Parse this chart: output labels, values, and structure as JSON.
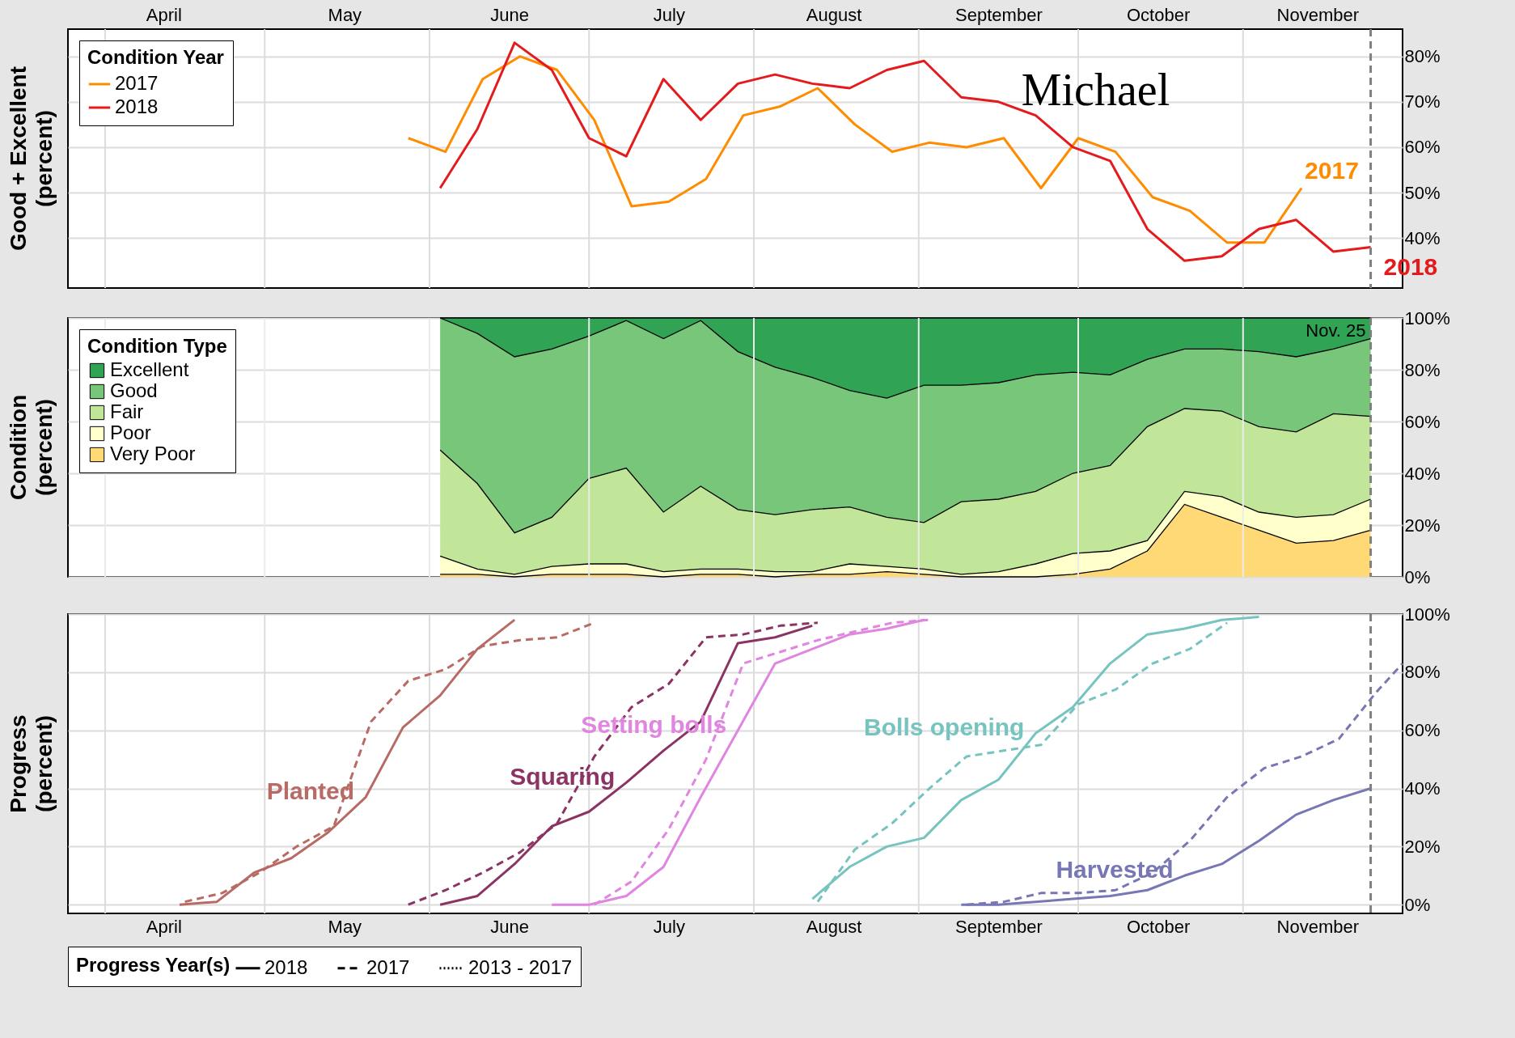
{
  "chart_data": [
    {
      "type": "line",
      "ylabel": "Good + Excellent\n(percent)",
      "legend_title": "Condition Year",
      "legend": "top left",
      "grid": true,
      "xlim": [
        "--03-25",
        "--12-01"
      ],
      "xticks": [
        {
          "value": "--04-01",
          "label": null
        },
        {
          "value": "--05-01",
          "label": null
        },
        {
          "value": "--06-01",
          "label": null
        },
        {
          "value": "--07-01",
          "label": null
        },
        {
          "value": "--08-01",
          "label": null
        },
        {
          "value": "--09-01",
          "label": null
        },
        {
          "value": "--10-01",
          "label": null
        },
        {
          "value": "--11-01",
          "label": null
        },
        {
          "value": "--04-12",
          "label": "April"
        },
        {
          "value": "--05-16",
          "label": "May"
        },
        {
          "value": "--06-16",
          "label": "June"
        },
        {
          "value": "--07-16",
          "label": "July"
        },
        {
          "value": "--08-16",
          "label": "August"
        },
        {
          "value": "--09-16",
          "label": "September"
        },
        {
          "value": "--10-16",
          "label": "October"
        },
        {
          "value": "--11-15",
          "label": "November"
        }
      ],
      "ylim": [
        29,
        86
      ],
      "yticks": [
        {
          "value": 40,
          "label": "40%"
        },
        {
          "value": 50,
          "label": "50%"
        },
        {
          "value": 60,
          "label": "60%"
        },
        {
          "value": 70,
          "label": "70%"
        },
        {
          "value": 80,
          "label": "80%"
        }
      ],
      "series": [
        {
          "name": "2017",
          "color": "#ff8c00",
          "x": [
            "--05-28",
            "--06-04",
            "--06-11",
            "--06-18",
            "--06-25",
            "--07-02",
            "--07-09",
            "--07-16",
            "--07-23",
            "--07-30",
            "--08-06",
            "--08-13",
            "--08-20",
            "--08-27",
            "--09-03",
            "--09-10",
            "--09-17",
            "--09-24",
            "--10-01",
            "--10-08",
            "--10-15",
            "--10-22",
            "--10-29",
            "--11-05",
            "--11-12"
          ],
          "values": [
            62,
            59,
            75,
            80,
            77,
            66,
            47,
            48,
            53,
            67,
            69,
            73,
            65,
            59,
            61,
            60,
            62,
            51,
            62,
            59,
            49,
            46,
            39,
            39,
            51
          ]
        },
        {
          "name": "2018",
          "color": "#e41a1c",
          "x": [
            "--06-03",
            "--06-10",
            "--06-17",
            "--06-24",
            "--07-01",
            "--07-08",
            "--07-15",
            "--07-22",
            "--07-29",
            "--08-05",
            "--08-12",
            "--08-19",
            "--08-26",
            "--09-02",
            "--09-09",
            "--09-16",
            "--09-23",
            "--09-30",
            "--10-07",
            "--10-14",
            "--10-21",
            "--10-28",
            "--11-04",
            "--11-11",
            "--11-18",
            "--11-25"
          ],
          "values": [
            51,
            64,
            83,
            77,
            62,
            58,
            75,
            66,
            74,
            76,
            74,
            73,
            77,
            79,
            71,
            70,
            67,
            60,
            57,
            42,
            35,
            36,
            42,
            44,
            37,
            38
          ]
        }
      ],
      "annotations": [
        "Michael"
      ],
      "ref_lines": [
        {
          "axis": "x",
          "value": "--11-25",
          "color": "#808080",
          "line_style": "dashed"
        }
      ]
    },
    {
      "type": "area",
      "stacked": true,
      "ylabel": "Condition\n(percent)",
      "legend_title": "Condition Type",
      "legend": "top left",
      "grid": true,
      "tick_labels": "y",
      "xlim": [
        "--03-25",
        "--12-01"
      ],
      "xticks": [
        {
          "value": "--04-01",
          "label": null
        },
        {
          "value": "--05-01",
          "label": null
        },
        {
          "value": "--06-01",
          "label": null
        },
        {
          "value": "--07-01",
          "label": null
        },
        {
          "value": "--08-01",
          "label": null
        },
        {
          "value": "--09-01",
          "label": null
        },
        {
          "value": "--10-01",
          "label": null
        },
        {
          "value": "--11-01",
          "label": null
        }
      ],
      "ylim": [
        0,
        100
      ],
      "yticks": [
        {
          "value": 0,
          "label": "0%"
        },
        {
          "value": 20,
          "label": "20%"
        },
        {
          "value": 40,
          "label": "40%"
        },
        {
          "value": 60,
          "label": "60%"
        },
        {
          "value": 80,
          "label": "80%"
        },
        {
          "value": 100,
          "label": "100%"
        }
      ],
      "x": [
        "--06-03",
        "--06-10",
        "--06-17",
        "--06-24",
        "--07-01",
        "--07-08",
        "--07-15",
        "--07-22",
        "--07-29",
        "--08-05",
        "--08-12",
        "--08-19",
        "--08-26",
        "--09-02",
        "--09-09",
        "--09-16",
        "--09-23",
        "--09-30",
        "--10-07",
        "--10-14",
        "--10-21",
        "--10-28",
        "--11-04",
        "--11-11",
        "--11-18",
        "--11-25"
      ],
      "series": [
        {
          "name": "Very Poor",
          "color": "#fed976",
          "values": [
            1,
            1,
            0,
            1,
            1,
            1,
            0,
            1,
            1,
            0,
            1,
            1,
            2,
            1,
            0,
            0,
            0,
            1,
            3,
            10,
            28,
            23,
            18,
            13,
            14,
            18
          ]
        },
        {
          "name": "Poor",
          "color": "#ffffcc",
          "values": [
            7,
            2,
            1,
            3,
            4,
            4,
            2,
            2,
            2,
            2,
            1,
            4,
            2,
            2,
            1,
            2,
            5,
            8,
            7,
            4,
            5,
            8,
            7,
            10,
            10,
            12
          ]
        },
        {
          "name": "Fair",
          "color": "#c2e699",
          "values": [
            41,
            33,
            16,
            19,
            33,
            37,
            23,
            32,
            23,
            22,
            24,
            22,
            19,
            18,
            28,
            28,
            28,
            31,
            33,
            44,
            32,
            33,
            33,
            33,
            39,
            32
          ]
        },
        {
          "name": "Good",
          "color": "#78c679",
          "values": [
            51,
            58,
            68,
            65,
            55,
            57,
            67,
            64,
            61,
            57,
            51,
            45,
            46,
            53,
            45,
            45,
            45,
            39,
            35,
            26,
            23,
            24,
            29,
            29,
            25,
            30
          ]
        },
        {
          "name": "Excellent",
          "color": "#31a354",
          "values": [
            0,
            6,
            15,
            12,
            7,
            1,
            8,
            1,
            13,
            19,
            23,
            28,
            31,
            26,
            26,
            25,
            22,
            21,
            22,
            16,
            12,
            12,
            13,
            15,
            12,
            8
          ]
        }
      ],
      "ref_lines": [
        {
          "axis": "x",
          "value": "--11-25",
          "label": "Nov. 25",
          "color": "#808080",
          "line_style": "dashed"
        }
      ]
    },
    {
      "type": "line",
      "ylabel": "Progress\n(percent)",
      "legend_title": "Progress Year(s)",
      "legend": "bottom",
      "grid": true,
      "xlim": [
        "--03-25",
        "--12-01"
      ],
      "xticks": [
        {
          "value": "--04-01",
          "label": null
        },
        {
          "value": "--05-01",
          "label": null
        },
        {
          "value": "--06-01",
          "label": null
        },
        {
          "value": "--07-01",
          "label": null
        },
        {
          "value": "--08-01",
          "label": null
        },
        {
          "value": "--09-01",
          "label": null
        },
        {
          "value": "--10-01",
          "label": null
        },
        {
          "value": "--11-01",
          "label": null
        },
        {
          "value": "--04-12",
          "label": "April"
        },
        {
          "value": "--05-16",
          "label": "May"
        },
        {
          "value": "--06-16",
          "label": "June"
        },
        {
          "value": "--07-16",
          "label": "July"
        },
        {
          "value": "--08-16",
          "label": "August"
        },
        {
          "value": "--09-16",
          "label": "September"
        },
        {
          "value": "--10-16",
          "label": "October"
        },
        {
          "value": "--11-15",
          "label": "November"
        }
      ],
      "ylim": [
        -3,
        100
      ],
      "yticks": [
        {
          "value": 0,
          "label": "0%"
        },
        {
          "value": 20,
          "label": "20%"
        },
        {
          "value": 40,
          "label": "40%"
        },
        {
          "value": 60,
          "label": "60%"
        },
        {
          "value": 80,
          "label": "80%"
        },
        {
          "value": 100,
          "label": "100%"
        }
      ],
      "series": [
        {
          "name": "Planted",
          "line_style": "solid",
          "color": "#b86a64",
          "x": [
            "--04-15",
            "--04-22",
            "--04-29",
            "--05-06",
            "--05-13",
            "--05-20",
            "--05-27",
            "--06-03",
            "--06-10",
            "--06-17"
          ],
          "values": [
            0,
            1,
            11,
            16,
            25,
            37,
            61,
            72,
            88,
            98
          ]
        },
        {
          "line_style": "dashed",
          "color": "#b86a64",
          "x": [
            "--04-16",
            "--04-23",
            "--04-30",
            "--05-07",
            "--05-14",
            "--05-21",
            "--05-28",
            "--06-04",
            "--06-11",
            "--06-18",
            "--06-25",
            "--07-02"
          ],
          "values": [
            1,
            4,
            11,
            20,
            27,
            63,
            77,
            81,
            89,
            91,
            92,
            97
          ]
        },
        {
          "name": "Squaring",
          "line_style": "solid",
          "color": "#8b3463",
          "x": [
            "--06-03",
            "--06-10",
            "--06-17",
            "--06-24",
            "--07-01",
            "--07-08",
            "--07-15",
            "--07-22",
            "--07-29",
            "--08-05",
            "--08-12"
          ],
          "values": [
            0,
            3,
            14,
            27,
            32,
            42,
            53,
            63,
            90,
            92,
            96
          ]
        },
        {
          "line_style": "dashed",
          "color": "#8b3463",
          "x": [
            "--05-28",
            "--06-04",
            "--06-11",
            "--06-18",
            "--06-25",
            "--07-02",
            "--07-09",
            "--07-16",
            "--07-23",
            "--07-30",
            "--08-06",
            "--08-13"
          ],
          "values": [
            0,
            5,
            11,
            18,
            28,
            51,
            68,
            76,
            92,
            93,
            96,
            97
          ]
        },
        {
          "name": "Setting bolls",
          "line_style": "solid",
          "color": "#e085e0",
          "x": [
            "--06-24",
            "--07-01",
            "--07-08",
            "--07-15",
            "--07-22",
            "--07-29",
            "--08-05",
            "--08-12",
            "--08-19",
            "--08-26",
            "--09-02"
          ],
          "values": [
            0,
            0,
            3,
            13,
            37,
            60,
            83,
            88,
            93,
            95,
            98
          ]
        },
        {
          "line_style": "dashed",
          "color": "#e085e0",
          "x": [
            "--07-02",
            "--07-09",
            "--07-16",
            "--07-23",
            "--07-30",
            "--08-06",
            "--08-13",
            "--08-20",
            "--08-27",
            "--09-03"
          ],
          "values": [
            0,
            8,
            26,
            50,
            83,
            87,
            91,
            94,
            97,
            98
          ]
        },
        {
          "name": "Bolls opening",
          "line_style": "solid",
          "color": "#76c4c0",
          "x": [
            "--08-12",
            "--08-19",
            "--08-26",
            "--09-02",
            "--09-09",
            "--09-16",
            "--09-23",
            "--09-30",
            "--10-07",
            "--10-14",
            "--10-21",
            "--10-28",
            "--11-04"
          ],
          "values": [
            2,
            13,
            20,
            23,
            36,
            43,
            59,
            68,
            83,
            93,
            95,
            98,
            99
          ]
        },
        {
          "line_style": "dashed",
          "color": "#76c4c0",
          "x": [
            "--08-13",
            "--08-20",
            "--08-27",
            "--09-03",
            "--09-10",
            "--09-17",
            "--09-24",
            "--10-01",
            "--10-08",
            "--10-15",
            "--10-22",
            "--10-29"
          ],
          "values": [
            1,
            19,
            28,
            40,
            51,
            53,
            55,
            69,
            74,
            83,
            88,
            97
          ]
        },
        {
          "name": "Harvested",
          "line_style": "solid",
          "color": "#7777b5",
          "x": [
            "--09-09",
            "--09-16",
            "--09-23",
            "--09-30",
            "--10-07",
            "--10-14",
            "--10-21",
            "--10-28",
            "--11-04",
            "--11-11",
            "--11-18",
            "--11-25"
          ],
          "values": [
            0,
            0,
            1,
            2,
            3,
            5,
            10,
            14,
            22,
            31,
            36,
            40
          ]
        },
        {
          "line_style": "dashed",
          "color": "#7777b5",
          "x": [
            "--09-10",
            "--09-17",
            "--09-24",
            "--10-01",
            "--10-08",
            "--10-15",
            "--10-22",
            "--10-29",
            "--11-05",
            "--11-12",
            "--11-19",
            "--11-26",
            "--12-01"
          ],
          "values": [
            0,
            1,
            4,
            4,
            5,
            11,
            22,
            37,
            47,
            51,
            57,
            73,
            83
          ]
        },
        {
          "line_style": "dotted",
          "color": "#000000"
        }
      ],
      "annotations": [
        "2018",
        "2017",
        "2013 - 2017"
      ],
      "ref_lines": [
        {
          "axis": "x",
          "value": "--11-25",
          "color": "#808080",
          "line_style": "dashed"
        }
      ]
    }
  ]
}
